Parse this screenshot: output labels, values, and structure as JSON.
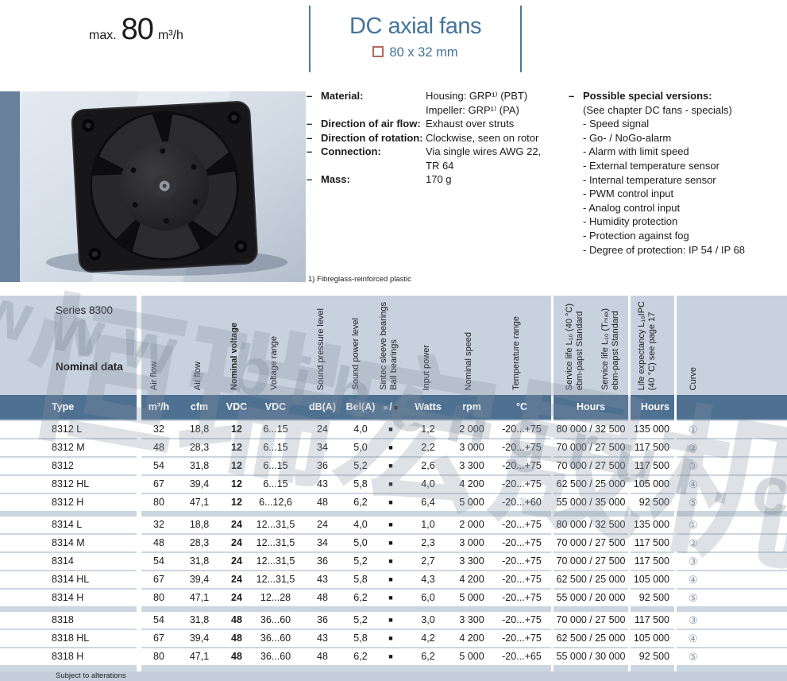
{
  "page": {
    "max_label": "max.",
    "max_value": "80",
    "max_unit": "m³/h",
    "title": "DC axial fans",
    "size_square": "□",
    "size_text": "80 x 32 mm",
    "footnote": "1) Fibreglass-reinforced plastic",
    "footer": "Subject to alterations"
  },
  "specs": {
    "dash": "–",
    "material_label": "Material:",
    "material_value1": "Housing: GRP¹⁾ (PBT)",
    "material_value2": "Impeller: GRP¹⁾ (PA)",
    "airflow_label": "Direction of air flow:",
    "airflow_value": "Exhaust over struts",
    "rotation_label": "Direction of rotation:",
    "rotation_value": "Clockwise, seen on rotor",
    "connection_label": "Connection:",
    "connection_value1": "Via single wires AWG 22,",
    "connection_value2": "TR 64",
    "mass_label": "Mass:",
    "mass_value": "170 g"
  },
  "special": {
    "dash": "–",
    "title": "Possible special versions:",
    "subtitle": "(See chapter DC fans - specials)",
    "items": [
      "- Speed signal",
      "- Go- / NoGo-alarm",
      "- Alarm with limit speed",
      "- External temperature sensor",
      "- Internal temperature sensor",
      "- PWM control input",
      "- Analog control input",
      "- Humidity protection",
      "- Protection against fog",
      "- Degree of protection: IP 54 / IP 68"
    ]
  },
  "table": {
    "series_label": "Series 8300",
    "nominal_data_label": "Nominal data",
    "rotated_headers": [
      {
        "line1": "Air flow"
      },
      {
        "line1": "Air flow"
      },
      {
        "line1": "Nominal voltage"
      },
      {
        "line1": "Voltage range"
      },
      {
        "line1": "Sound pressure level"
      },
      {
        "line1": "Sound power level"
      },
      {
        "line1": "Sintec sleeve bearings",
        "line2": "Ball bearings"
      },
      {
        "line1": "Input power"
      },
      {
        "line1": "Nominal speed"
      },
      {
        "line1": "Temperature range"
      },
      {
        "line1": "Service life L₁₀  (40 °C)",
        "line2": "ebm-papst Standard"
      },
      {
        "line1": "Service life L₁₀ (Tₘₐₓ)",
        "line2": "ebm-papst Standard"
      },
      {
        "line1": "Life expectancy L₁₀IPC",
        "line2": "(40 °C)  see page 17"
      },
      {
        "line1": "Curve"
      }
    ],
    "units": {
      "type": "Type",
      "m3h": "m³/h",
      "cfm": "cfm",
      "vdc": "VDC",
      "range": "VDC",
      "dba": "dB(A)",
      "bela": "Bel(A)",
      "bearing_sleeve": "■",
      "bearing_sep": "/",
      "bearing_ball": "■",
      "watts": "Watts",
      "rpm": "rpm",
      "temp": "°C",
      "hours1": "Hours",
      "hours2": "Hours",
      "curve": ""
    },
    "bearing_mark": "■",
    "groups": [
      {
        "rows": [
          {
            "type": "8312 L",
            "m3h": "32",
            "cfm": "18,8",
            "vdc": "12",
            "range": "6...15",
            "dba": "24",
            "bela": "4,0",
            "watts": "1,2",
            "rpm": "2 000",
            "temp": "-20...+75",
            "service": "80 000 / 32 500",
            "life": "135 000",
            "curve": "①"
          },
          {
            "type": "8312 M",
            "m3h": "48",
            "cfm": "28,3",
            "vdc": "12",
            "range": "6...15",
            "dba": "34",
            "bela": "5,0",
            "watts": "2,2",
            "rpm": "3 000",
            "temp": "-20...+75",
            "service": "70 000 / 27 500",
            "life": "117 500",
            "curve": "②"
          },
          {
            "type": "8312",
            "m3h": "54",
            "cfm": "31,8",
            "vdc": "12",
            "range": "6...15",
            "dba": "36",
            "bela": "5,2",
            "watts": "2,6",
            "rpm": "3 300",
            "temp": "-20...+75",
            "service": "70 000 / 27 500",
            "life": "117 500",
            "curve": "③"
          },
          {
            "type": "8312 HL",
            "m3h": "67",
            "cfm": "39,4",
            "vdc": "12",
            "range": "6...15",
            "dba": "43",
            "bela": "5,8",
            "watts": "4,0",
            "rpm": "4 200",
            "temp": "-20...+75",
            "service": "62 500 / 25 000",
            "life": "105 000",
            "curve": "④"
          },
          {
            "type": "8312 H",
            "m3h": "80",
            "cfm": "47,1",
            "vdc": "12",
            "range": "6...12,6",
            "dba": "48",
            "bela": "6,2",
            "watts": "6,4",
            "rpm": "5 000",
            "temp": "-20...+60",
            "service": "55 000 / 35 000",
            "life": "92 500",
            "curve": "⑤"
          }
        ]
      },
      {
        "rows": [
          {
            "type": "8314 L",
            "m3h": "32",
            "cfm": "18,8",
            "vdc": "24",
            "range": "12...31,5",
            "dba": "24",
            "bela": "4,0",
            "watts": "1,0",
            "rpm": "2 000",
            "temp": "-20...+75",
            "service": "80 000 / 32 500",
            "life": "135 000",
            "curve": "①"
          },
          {
            "type": "8314 M",
            "m3h": "48",
            "cfm": "28,3",
            "vdc": "24",
            "range": "12...31,5",
            "dba": "34",
            "bela": "5,0",
            "watts": "2,3",
            "rpm": "3 000",
            "temp": "-20...+75",
            "service": "70 000 / 27 500",
            "life": "117 500",
            "curve": "②"
          },
          {
            "type": "8314",
            "m3h": "54",
            "cfm": "31,8",
            "vdc": "24",
            "range": "12...31,5",
            "dba": "36",
            "bela": "5,2",
            "watts": "2,7",
            "rpm": "3 300",
            "temp": "-20...+75",
            "service": "70 000 / 27 500",
            "life": "117 500",
            "curve": "③"
          },
          {
            "type": "8314 HL",
            "m3h": "67",
            "cfm": "39,4",
            "vdc": "24",
            "range": "12...31,5",
            "dba": "43",
            "bela": "5,8",
            "watts": "4,3",
            "rpm": "4 200",
            "temp": "-20...+75",
            "service": "62 500 / 25 000",
            "life": "105 000",
            "curve": "④"
          },
          {
            "type": "8314 H",
            "m3h": "80",
            "cfm": "47,1",
            "vdc": "24",
            "range": "12...28",
            "dba": "48",
            "bela": "6,2",
            "watts": "6,0",
            "rpm": "5 000",
            "temp": "-20...+75",
            "service": "55 000 / 20 000",
            "life": "92 500",
            "curve": "⑤"
          }
        ]
      },
      {
        "rows": [
          {
            "type": "8318",
            "m3h": "54",
            "cfm": "31,8",
            "vdc": "48",
            "range": "36...60",
            "dba": "36",
            "bela": "5,2",
            "watts": "3,0",
            "rpm": "3 300",
            "temp": "-20...+75",
            "service": "70 000 / 27 500",
            "life": "117 500",
            "curve": "③"
          },
          {
            "type": "8318 HL",
            "m3h": "67",
            "cfm": "39,4",
            "vdc": "48",
            "range": "36...60",
            "dba": "43",
            "bela": "5,8",
            "watts": "4,2",
            "rpm": "4 200",
            "temp": "-20...+75",
            "service": "62 500 / 25 000",
            "life": "105 000",
            "curve": "④"
          },
          {
            "type": "8318 H",
            "m3h": "80",
            "cfm": "47,1",
            "vdc": "48",
            "range": "36...60",
            "dba": "48",
            "bela": "6,2",
            "watts": "6,2",
            "rpm": "5 000",
            "temp": "-20...+65",
            "service": "55 000 / 30 000",
            "life": "92 500",
            "curve": "⑤"
          }
        ]
      }
    ]
  },
  "watermark": {
    "url_text": "www.bihengrui.com",
    "cn_text": "恒瑞宏晟机电"
  },
  "colors": {
    "accent_blue": "#44749c",
    "unit_row_blue": "#4e7091",
    "band_blue": "#c8d2de",
    "strip_blue": "#c3ceda",
    "photo_bar_blue": "#68809b"
  }
}
